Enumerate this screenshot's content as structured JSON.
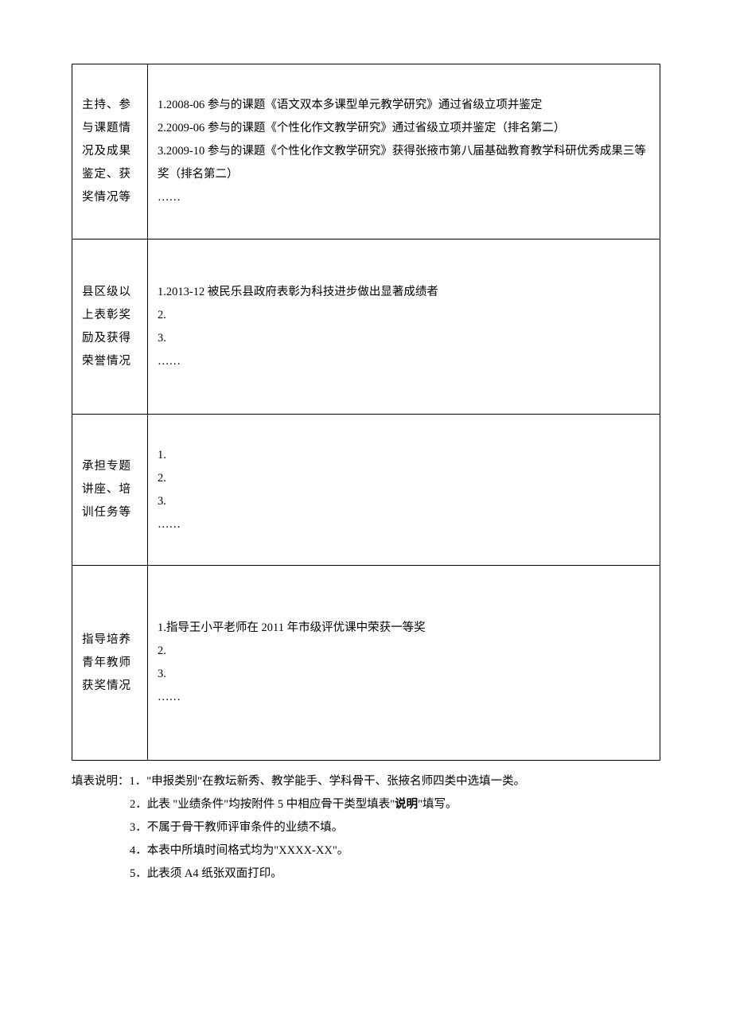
{
  "table": {
    "rows": [
      {
        "label": "主持、参与课题情况及成果鉴定、获奖情况等",
        "lines": [
          "1.2008-06 参与的课题《语文双本多课型单元教学研究》通过省级立项并鉴定",
          "2.2009-06 参与的课题《个性化作文教学研究》通过省级立项并鉴定（排名第二）",
          "3.2009-10 参与的课题《个性化作文教学研究》获得张掖市第八届基础教育教学科研优秀成果三等奖（排名第二）",
          "",
          "……"
        ]
      },
      {
        "label": "县区级以上表彰奖励及获得荣誉情况",
        "lines": [
          "1.2013-12 被民乐县政府表彰为科技进步做出显著成绩者",
          "2.",
          "3.",
          "……"
        ]
      },
      {
        "label": "承担专题讲座、培训任务等",
        "lines": [
          "1.",
          "2.",
          "3.",
          "……"
        ]
      },
      {
        "label": "指导培养青年教师获奖情况",
        "lines": [
          "1.指导王小平老师在 2011 年市级评优课中荣获一等奖",
          "2.",
          "3.",
          "……"
        ]
      }
    ]
  },
  "notes": {
    "prefix": "填表说明：",
    "items": [
      {
        "num": "1．",
        "text_before": "\"申报类别\"在教坛新秀、教学能手、学科骨干、张掖名师四类中选填一类。",
        "bold": "",
        "text_after": ""
      },
      {
        "num": "2．",
        "text_before": "此表 \"业绩条件\"均按附件 5 中相应骨干类型填表\"",
        "bold": "说明",
        "text_after": "\"填写。"
      },
      {
        "num": "3．",
        "text_before": "不属于骨干教师评审条件的业绩不填。",
        "bold": "",
        "text_after": ""
      },
      {
        "num": "4．",
        "text_before": "本表中所填时间格式均为\"XXXX-XX\"。",
        "bold": "",
        "text_after": ""
      },
      {
        "num": "5．",
        "text_before": "此表须 A4 纸张双面打印。",
        "bold": "",
        "text_after": ""
      }
    ]
  }
}
